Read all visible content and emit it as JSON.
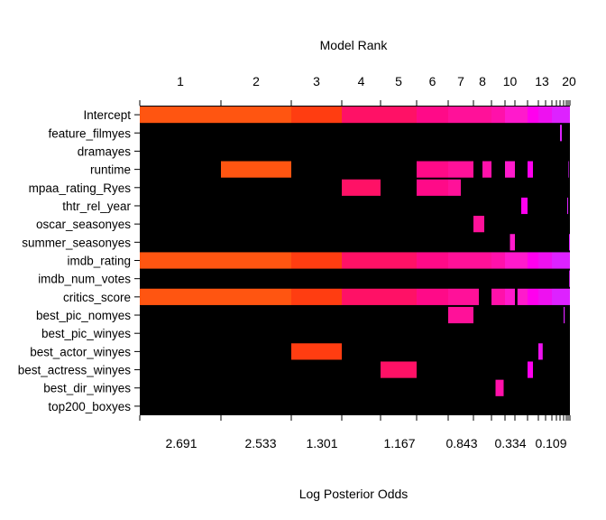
{
  "chart_data": {
    "type": "heatmap",
    "title": "Model Rank",
    "xlabel": "Log Posterior Odds",
    "top_tick_labels": [
      "1",
      "2",
      "3",
      "4",
      "5",
      "6",
      "7",
      "8",
      "10",
      "13",
      "20"
    ],
    "bottom_tick_labels": [
      "2.691",
      "2.533",
      "1.301",
      "1.167",
      "0.843",
      "0.334",
      "0.109"
    ],
    "variables": [
      "Intercept",
      "feature_filmyes",
      "dramayes",
      "runtime",
      "mpaa_rating_Ryes",
      "thtr_rel_year",
      "oscar_seasonyes",
      "summer_seasonyes",
      "imdb_rating",
      "imdb_num_votes",
      "critics_score",
      "best_pic_nomyes",
      "best_pic_winyes",
      "best_actor_winyes",
      "best_actress_winyes",
      "best_dir_winyes",
      "top200_boxyes"
    ],
    "background_color": "#000000",
    "colors": [
      "#ff5511",
      "#ff3d11",
      "#ff1166",
      "#ff0a88",
      "#ff1199",
      "#ff11aa",
      "#ff1acc",
      "#ff00ee",
      "#ee11f0",
      "#dd22ff"
    ],
    "model_boundaries": [
      0,
      1,
      2,
      3,
      4,
      5,
      6,
      7,
      8,
      9,
      10,
      11,
      12,
      13,
      14,
      15,
      16,
      17,
      18,
      19,
      20
    ],
    "bottom_tick_positions": [
      1.0,
      2.0,
      3.0,
      4.0,
      5.0,
      6.7,
      9.5
    ],
    "top_tick_positions": [
      0.5,
      1.5,
      2.5,
      3.5,
      4.5,
      5.5,
      6.5,
      7.5,
      9.5,
      12.5,
      19.5
    ],
    "inclusion": {
      "Intercept": [
        [
          0,
          20
        ]
      ],
      "feature_filmyes": [
        [
          16,
          16.5
        ]
      ],
      "dramayes": [],
      "runtime": [
        [
          1,
          2
        ],
        [
          5,
          7
        ],
        [
          7.5,
          8
        ],
        [
          9,
          10
        ],
        [
          11,
          11.5
        ],
        [
          19,
          19.3
        ]
      ],
      "mpaa_rating_Ryes": [
        [
          3,
          4
        ],
        [
          5,
          6.5
        ]
      ],
      "thtr_rel_year": [
        [
          10.5,
          11
        ],
        [
          18.5,
          19
        ]
      ],
      "oscar_seasonyes": [
        [
          7,
          7.6
        ]
      ],
      "summer_seasonyes": [
        [
          9.5,
          10
        ],
        [
          19.5,
          20
        ]
      ],
      "imdb_rating": [
        [
          0,
          20
        ]
      ],
      "imdb_num_votes": [
        [
          19.6,
          20
        ]
      ],
      "critics_score": [
        [
          0,
          7.3
        ],
        [
          8,
          10
        ],
        [
          10.2,
          20
        ]
      ],
      "best_pic_nomyes": [
        [
          6,
          7
        ],
        [
          17,
          17.4
        ]
      ],
      "best_pic_winyes": [],
      "best_actor_winyes": [
        [
          2,
          3
        ],
        [
          12,
          12.6
        ]
      ],
      "best_actress_winyes": [
        [
          4,
          5
        ],
        [
          11,
          11.5
        ]
      ],
      "best_dir_winyes": [
        [
          8.3,
          8.9
        ]
      ],
      "top200_boxyes": []
    }
  }
}
